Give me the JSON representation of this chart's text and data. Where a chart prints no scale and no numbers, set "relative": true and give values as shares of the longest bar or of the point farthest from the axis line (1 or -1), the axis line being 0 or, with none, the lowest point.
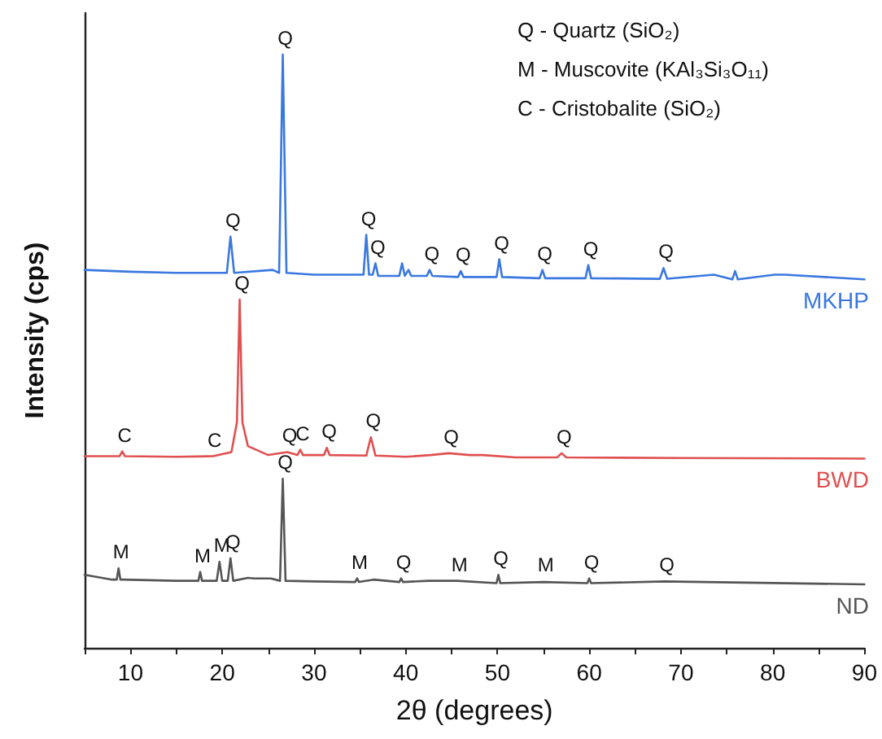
{
  "chart_data": {
    "type": "line",
    "relative": true,
    "xlabel": "2θ (degrees)",
    "ylabel": "Intensity (cps)",
    "xlim": [
      5,
      90
    ],
    "xticks": [
      {
        "value": 5,
        "label": null
      },
      10,
      {
        "value": 15,
        "label": null
      },
      20,
      {
        "value": 25,
        "label": null
      },
      30,
      {
        "value": 35,
        "label": null
      },
      40,
      {
        "value": 45,
        "label": null
      },
      50,
      {
        "value": 55,
        "label": null
      },
      60,
      {
        "value": 65,
        "label": null
      },
      70,
      {
        "value": 75,
        "label": null
      },
      80,
      {
        "value": 85,
        "label": null
      },
      90
    ],
    "grid": false,
    "legend": false,
    "marker": "none",
    "line_style": "solid",
    "series": [
      {
        "name": "MKHP",
        "color": "#3a78e0",
        "x": [
          5,
          10,
          15,
          20.5,
          20.9,
          21.3,
          25.5,
          26.2,
          26.6,
          27.0,
          30,
          35.4,
          35.7,
          36.0,
          36.4,
          36.7,
          37.0,
          39.3,
          39.6,
          39.9,
          40.3,
          40.6,
          42.3,
          42.6,
          42.9,
          45.7,
          46.0,
          46.3,
          49.9,
          50.2,
          50.5,
          54.6,
          54.9,
          55.2,
          59.6,
          59.9,
          60.2,
          67.7,
          68.1,
          68.5,
          73.6,
          75.6,
          75.9,
          76.2,
          80.2,
          81.3,
          90
        ],
        "values": [
          0.637,
          0.634,
          0.632,
          0.632,
          0.693,
          0.632,
          0.637,
          0.632,
          1,
          0.632,
          0.629,
          0.629,
          0.696,
          0.629,
          0.629,
          0.648,
          0.627,
          0.627,
          0.648,
          0.627,
          0.637,
          0.627,
          0.627,
          0.637,
          0.627,
          0.625,
          0.635,
          0.625,
          0.625,
          0.655,
          0.625,
          0.623,
          0.637,
          0.623,
          0.623,
          0.645,
          0.623,
          0.622,
          0.64,
          0.622,
          0.629,
          0.621,
          0.635,
          0.621,
          0.629,
          0.629,
          0.621
        ]
      },
      {
        "name": "BWD",
        "color": "#e05050",
        "x": [
          5,
          8.8,
          9.1,
          9.4,
          15,
          19,
          21,
          21.6,
          21.9,
          22.2,
          22.8,
          25,
          27.1,
          28.2,
          28.5,
          28.8,
          31.1,
          31.4,
          31.7,
          35.7,
          36.2,
          36.7,
          40,
          42.7,
          44.7,
          47,
          48.4,
          52,
          56.5,
          57,
          57.5,
          70,
          90
        ],
        "values": [
          0.323,
          0.323,
          0.331,
          0.323,
          0.322,
          0.323,
          0.33,
          0.38,
          0.587,
          0.38,
          0.34,
          0.325,
          0.33,
          0.325,
          0.334,
          0.325,
          0.325,
          0.337,
          0.325,
          0.324,
          0.355,
          0.324,
          0.322,
          0.325,
          0.328,
          0.325,
          0.325,
          0.321,
          0.321,
          0.328,
          0.321,
          0.32,
          0.319
        ]
      },
      {
        "name": "ND",
        "color": "#555555",
        "x": [
          5,
          8,
          8.5,
          8.7,
          8.9,
          9.2,
          15,
          17.4,
          17.6,
          17.8,
          19.4,
          19.7,
          20.0,
          20.6,
          20.9,
          21.2,
          22.8,
          23.5,
          25.3,
          26.3,
          26.6,
          26.9,
          30,
          34.5,
          34.7,
          34.9,
          36.5,
          39.3,
          39.5,
          39.7,
          42.5,
          45.6,
          49.9,
          50.1,
          50.3,
          55,
          59.8,
          60,
          60.2,
          68.2,
          90
        ],
        "values": [
          0.123,
          0.115,
          0.115,
          0.134,
          0.115,
          0.115,
          0.113,
          0.113,
          0.128,
          0.113,
          0.113,
          0.145,
          0.113,
          0.113,
          0.151,
          0.113,
          0.118,
          0.117,
          0.117,
          0.113,
          0.285,
          0.113,
          0.112,
          0.111,
          0.117,
          0.111,
          0.115,
          0.111,
          0.117,
          0.111,
          0.113,
          0.113,
          0.109,
          0.123,
          0.109,
          0.111,
          0.109,
          0.117,
          0.109,
          0.112,
          0.107
        ]
      }
    ],
    "annotations": [
      "Q - Quartz (SiO₂)",
      "M - Muscovite (KAl₃Si₃O₁₁)",
      "C - Cristobalite (SiO₂)",
      {
        "text": "Q",
        "x": 20.9,
        "y": 0.693
      },
      {
        "text": "Q",
        "x": 26.6,
        "y": 1
      },
      {
        "text": "Q",
        "x": 35.7,
        "y": 0.696
      },
      {
        "text": "Q",
        "x": 36.7,
        "y": 0.648
      },
      {
        "text": "Q",
        "x": 42.6,
        "y": 0.637
      },
      {
        "text": "Q",
        "x": 46.0,
        "y": 0.635
      },
      {
        "text": "Q",
        "x": 50.2,
        "y": 0.655
      },
      {
        "text": "Q",
        "x": 54.9,
        "y": 0.637
      },
      {
        "text": "Q",
        "x": 59.9,
        "y": 0.645
      },
      {
        "text": "Q",
        "x": 68.1,
        "y": 0.64
      },
      {
        "text": "C",
        "x": 9.1,
        "y": 0.331
      },
      {
        "text": "C",
        "x": 18.9,
        "y": 0.323
      },
      {
        "text": "Q",
        "x": 21.9,
        "y": 0.587
      },
      {
        "text": "Q",
        "x": 27.1,
        "y": 0.33
      },
      {
        "text": "C",
        "x": 28.5,
        "y": 0.334
      },
      {
        "text": "Q",
        "x": 31.4,
        "y": 0.337
      },
      {
        "text": "Q",
        "x": 36.2,
        "y": 0.355
      },
      {
        "text": "Q",
        "x": 44.7,
        "y": 0.328
      },
      {
        "text": "Q",
        "x": 57,
        "y": 0.328
      },
      {
        "text": "M",
        "x": 8.7,
        "y": 0.134
      },
      {
        "text": "M",
        "x": 17.6,
        "y": 0.128
      },
      {
        "text": "M",
        "x": 19.7,
        "y": 0.145
      },
      {
        "text": "Q",
        "x": 20.9,
        "y": 0.151
      },
      {
        "text": "Q",
        "x": 26.6,
        "y": 0.285
      },
      {
        "text": "M",
        "x": 34.7,
        "y": 0.117
      },
      {
        "text": "Q",
        "x": 39.5,
        "y": 0.117
      },
      {
        "text": "M",
        "x": 45.6,
        "y": 0.113
      },
      {
        "text": "Q",
        "x": 50.1,
        "y": 0.123
      },
      {
        "text": "M",
        "x": 55,
        "y": 0.113
      },
      {
        "text": "Q",
        "x": 60,
        "y": 0.117
      },
      {
        "text": "Q",
        "x": 68.2,
        "y": 0.113
      }
    ]
  }
}
